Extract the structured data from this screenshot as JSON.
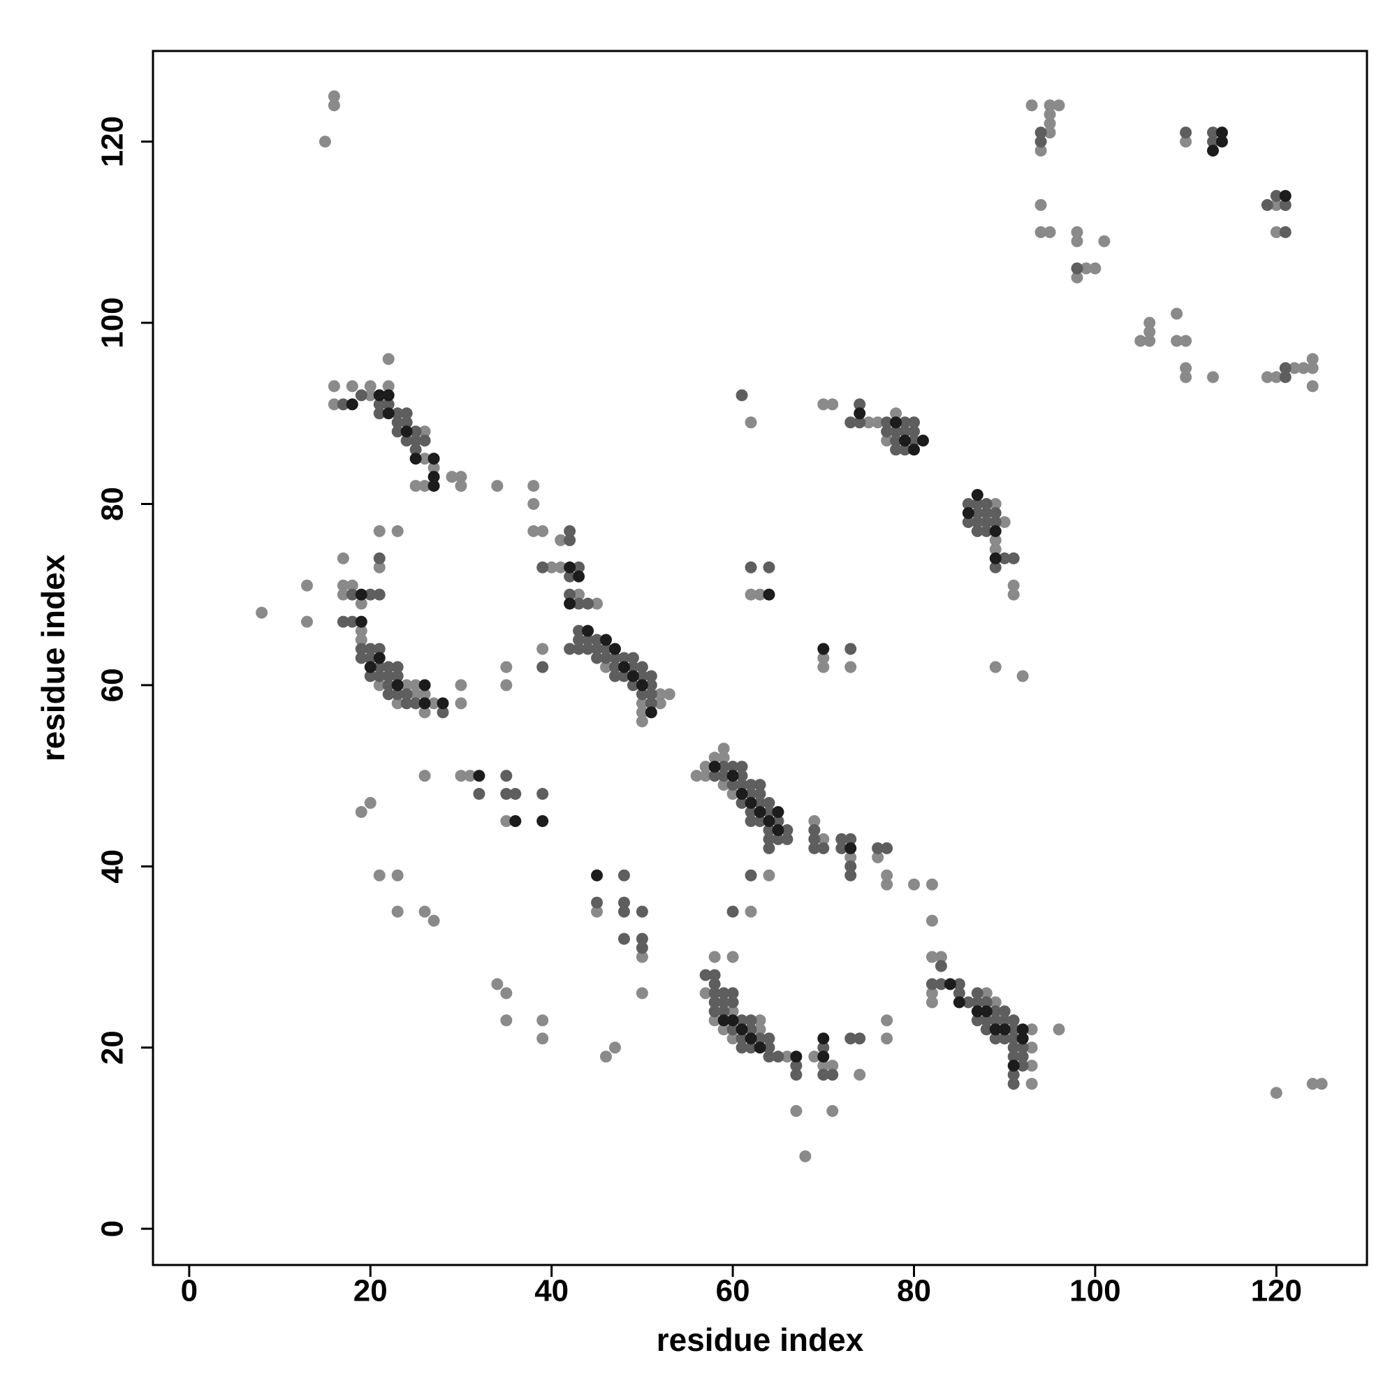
{
  "chart_data": {
    "type": "scatter",
    "x_label": "residue index",
    "y_label": "residue index",
    "xlim": [
      -4,
      130
    ],
    "ylim": [
      -4,
      130
    ],
    "xticks": [
      0,
      20,
      40,
      60,
      80,
      100,
      120
    ],
    "yticks": [
      0,
      20,
      40,
      60,
      80,
      100,
      120
    ],
    "grid": false,
    "series": [
      {
        "color": "#8a8a8a",
        "x": [
          16,
          16,
          15,
          93,
          95,
          96,
          95,
          95,
          95,
          94,
          94,
          94,
          95,
          98,
          98,
          101,
          99,
          100,
          98,
          110,
          120,
          120,
          106,
          106,
          105,
          106,
          109,
          109,
          110,
          110,
          110,
          113,
          119,
          120,
          122,
          123,
          124,
          124,
          124,
          16,
          16,
          18,
          20,
          20,
          22,
          22,
          26,
          26,
          27,
          25,
          26,
          29,
          30,
          30,
          34,
          38,
          38,
          38,
          39,
          17,
          13,
          8,
          13,
          17,
          17,
          18,
          19,
          19,
          21,
          23,
          24,
          25,
          25,
          26,
          26,
          27,
          30,
          30,
          21,
          23,
          21,
          19,
          40,
          41,
          41,
          43,
          45,
          39,
          35,
          35,
          46,
          50,
          50,
          50,
          52,
          52,
          53,
          56,
          57,
          57,
          58,
          59,
          59,
          59,
          60,
          69,
          70,
          73,
          76,
          77,
          77,
          80,
          82,
          82,
          26,
          30,
          31,
          35,
          19,
          20,
          21,
          23,
          23,
          26,
          27,
          34,
          35,
          35,
          39,
          39,
          45,
          50,
          50,
          46,
          47,
          58,
          60,
          57,
          60,
          58,
          59,
          60,
          63,
          63,
          66,
          69,
          70,
          71,
          74,
          77,
          77,
          67,
          71,
          68,
          62,
          64,
          82,
          83,
          82,
          82,
          88,
          89,
          93,
          93,
          93,
          93,
          96,
          89,
          89,
          89,
          90,
          91,
          91,
          89,
          92,
          70,
          71,
          75,
          76,
          77,
          78,
          62,
          62,
          63,
          70,
          70,
          73,
          120,
          124,
          125
        ],
        "values": [
          125,
          124,
          120,
          124,
          124,
          124,
          123,
          122,
          121,
          119,
          113,
          110,
          110,
          110,
          109,
          109,
          106,
          106,
          105,
          120,
          113,
          110,
          100,
          99,
          98,
          98,
          101,
          98,
          98,
          95,
          94,
          94,
          94,
          94,
          95,
          95,
          95,
          96,
          93,
          93,
          91,
          93,
          93,
          92,
          93,
          96,
          88,
          85,
          84,
          82,
          82,
          83,
          83,
          82,
          82,
          82,
          80,
          77,
          77,
          74,
          71,
          68,
          67,
          71,
          70,
          71,
          66,
          65,
          60,
          58,
          60,
          60,
          59,
          59,
          57,
          58,
          60,
          58,
          77,
          77,
          73,
          69,
          73,
          73,
          76,
          70,
          69,
          64,
          62,
          60,
          62,
          58,
          57,
          56,
          59,
          58,
          59,
          50,
          50,
          51,
          52,
          53,
          52,
          49,
          48,
          45,
          43,
          41,
          41,
          39,
          38,
          38,
          38,
          34,
          50,
          50,
          50,
          45,
          46,
          47,
          39,
          39,
          35,
          35,
          34,
          27,
          26,
          23,
          23,
          21,
          35,
          30,
          26,
          19,
          20,
          30,
          30,
          26,
          24,
          23,
          22,
          21,
          22,
          23,
          19,
          19,
          18,
          18,
          17,
          23,
          21,
          13,
          13,
          8,
          35,
          39,
          30,
          30,
          26,
          25,
          26,
          25,
          22,
          20,
          18,
          16,
          22,
          80,
          76,
          75,
          78,
          71,
          70,
          62,
          61,
          91,
          91,
          89,
          89,
          87,
          90,
          89,
          70,
          70,
          63,
          62,
          62,
          15,
          16,
          16
        ]
      },
      {
        "color": "#5e5e5e",
        "x": [
          94,
          94,
          98,
          113,
          113,
          120,
          119,
          121,
          121,
          121,
          110,
          121,
          19,
          21,
          21,
          22,
          23,
          23,
          23,
          24,
          24,
          24,
          25,
          25,
          25,
          26,
          17,
          18,
          20,
          21,
          17,
          18,
          19,
          19,
          20,
          20,
          20,
          21,
          21,
          21,
          22,
          22,
          22,
          22,
          23,
          23,
          23,
          24,
          24,
          25,
          28,
          21,
          39,
          43,
          42,
          42,
          42,
          42,
          43,
          44,
          43,
          43,
          43,
          42,
          44,
          44,
          45,
          45,
          45,
          46,
          46,
          47,
          47,
          47,
          48,
          48,
          49,
          49,
          49,
          50,
          50,
          51,
          51,
          51,
          51,
          50,
          39,
          58,
          59,
          59,
          60,
          60,
          61,
          61,
          61,
          61,
          62,
          62,
          62,
          62,
          63,
          63,
          63,
          63,
          64,
          64,
          64,
          64,
          64,
          65,
          65,
          66,
          66,
          69,
          69,
          69,
          70,
          72,
          72,
          73,
          73,
          73,
          76,
          77,
          32,
          35,
          35,
          36,
          39,
          48,
          45,
          48,
          48,
          50,
          48,
          50,
          50,
          60,
          62,
          57,
          58,
          58,
          58,
          59,
          60,
          58,
          59,
          60,
          58,
          59,
          61,
          60,
          61,
          62,
          62,
          62,
          63,
          64,
          64,
          64,
          61,
          65,
          67,
          67,
          70,
          70,
          71,
          73,
          74,
          82,
          83,
          85,
          85,
          86,
          87,
          87,
          87,
          88,
          88,
          88,
          89,
          89,
          89,
          90,
          90,
          90,
          91,
          91,
          91,
          91,
          91,
          91,
          91,
          92,
          92,
          92,
          83,
          86,
          86,
          87,
          87,
          87,
          87,
          88,
          88,
          88,
          88,
          89,
          89,
          89,
          90,
          91,
          73,
          74,
          74,
          77,
          77,
          78,
          78,
          78,
          79,
          79,
          79,
          80,
          80,
          80,
          61,
          62,
          64,
          73
        ],
        "values": [
          120,
          121,
          106,
          120,
          121,
          114,
          113,
          110,
          94,
          95,
          121,
          113,
          92,
          91,
          90,
          91,
          90,
          89,
          88,
          90,
          89,
          87,
          88,
          87,
          86,
          87,
          91,
          70,
          70,
          70,
          67,
          67,
          64,
          63,
          64,
          63,
          61,
          64,
          62,
          61,
          62,
          61,
          60,
          59,
          62,
          61,
          59,
          59,
          58,
          58,
          57,
          74,
          73,
          73,
          72,
          76,
          77,
          70,
          69,
          69,
          66,
          65,
          64,
          64,
          65,
          64,
          65,
          64,
          63,
          64,
          63,
          63,
          62,
          61,
          63,
          61,
          63,
          62,
          60,
          62,
          61,
          61,
          60,
          59,
          58,
          59,
          62,
          50,
          51,
          50,
          51,
          49,
          51,
          50,
          49,
          47,
          49,
          48,
          46,
          45,
          49,
          48,
          47,
          45,
          47,
          46,
          44,
          43,
          42,
          45,
          43,
          44,
          43,
          44,
          43,
          42,
          42,
          43,
          42,
          43,
          40,
          39,
          42,
          42,
          48,
          50,
          48,
          48,
          48,
          39,
          36,
          36,
          35,
          35,
          32,
          32,
          31,
          35,
          39,
          28,
          28,
          27,
          26,
          26,
          26,
          25,
          25,
          25,
          24,
          24,
          23,
          22,
          21,
          22,
          20,
          23,
          21,
          21,
          20,
          19,
          20,
          19,
          18,
          17,
          20,
          17,
          17,
          21,
          21,
          27,
          27,
          27,
          26,
          25,
          26,
          25,
          23,
          25,
          23,
          22,
          24,
          23,
          21,
          24,
          23,
          21,
          23,
          22,
          21,
          20,
          19,
          17,
          16,
          20,
          19,
          18,
          29,
          80,
          78,
          80,
          79,
          78,
          77,
          80,
          79,
          78,
          77,
          79,
          78,
          73,
          74,
          74,
          89,
          91,
          89,
          89,
          88,
          88,
          87,
          86,
          89,
          88,
          86,
          89,
          88,
          87,
          92,
          73,
          73,
          64
        ]
      },
      {
        "color": "#1c1c1c",
        "x": [
          21,
          22,
          22,
          24,
          25,
          27,
          27,
          27,
          18,
          19,
          19,
          20,
          21,
          23,
          26,
          26,
          28,
          42,
          43,
          42,
          44,
          46,
          47,
          48,
          49,
          50,
          51,
          58,
          60,
          61,
          62,
          63,
          64,
          65,
          65,
          59,
          60,
          61,
          62,
          63,
          67,
          70,
          70,
          73,
          84,
          85,
          87,
          88,
          89,
          90,
          91,
          92,
          92,
          87,
          86,
          89,
          89,
          78,
          79,
          80,
          81,
          74,
          64,
          70,
          45,
          36,
          39,
          32,
          114,
          121,
          113,
          114
        ],
        "values": [
          92,
          92,
          90,
          88,
          85,
          85,
          83,
          82,
          91,
          70,
          67,
          62,
          63,
          60,
          60,
          58,
          58,
          73,
          72,
          69,
          66,
          65,
          64,
          62,
          61,
          60,
          57,
          51,
          50,
          48,
          47,
          46,
          45,
          46,
          44,
          23,
          23,
          22,
          21,
          20,
          19,
          19,
          21,
          42,
          27,
          25,
          24,
          24,
          22,
          22,
          18,
          22,
          21,
          81,
          79,
          77,
          74,
          89,
          87,
          86,
          87,
          90,
          70,
          64,
          39,
          45,
          45,
          50,
          121,
          114,
          119,
          120
        ]
      }
    ]
  }
}
